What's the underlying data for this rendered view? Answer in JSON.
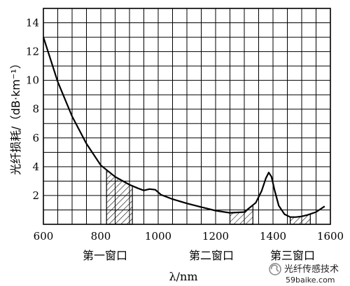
{
  "chart_data": {
    "type": "line",
    "title": "",
    "xlabel": "λ/nm",
    "ylabel": "光纤损耗/（dB·km⁻¹）",
    "xlim": [
      600,
      1600
    ],
    "ylim": [
      0,
      15
    ],
    "grid": true,
    "x_ticks": [
      "600",
      "800",
      "1000",
      "1200",
      "1400",
      "1600"
    ],
    "y_ticks": [
      "2",
      "4",
      "6",
      "8",
      "10",
      "12",
      "14"
    ],
    "series": [
      {
        "x": [
          600,
          650,
          700,
          750,
          800,
          850,
          900,
          930,
          950,
          970,
          990,
          1010,
          1050,
          1100,
          1150,
          1200,
          1250,
          1300,
          1340,
          1360,
          1375,
          1385,
          1395,
          1405,
          1420,
          1440,
          1460,
          1480,
          1500,
          1520,
          1550,
          1580
        ],
        "y": [
          13.0,
          9.9,
          7.5,
          5.6,
          4.1,
          3.3,
          2.75,
          2.5,
          2.35,
          2.45,
          2.4,
          2.05,
          1.75,
          1.45,
          1.2,
          0.95,
          0.8,
          0.85,
          1.5,
          2.3,
          3.2,
          3.6,
          3.3,
          2.4,
          1.3,
          0.7,
          0.5,
          0.5,
          0.55,
          0.65,
          0.85,
          1.25
        ]
      }
    ],
    "windows": [
      {
        "label": "第一窗口",
        "x": [
          820,
          910
        ]
      },
      {
        "label": "第二窗口",
        "x": [
          1250,
          1330
        ]
      },
      {
        "label": "第三窗口",
        "x": [
          1460,
          1530
        ]
      }
    ]
  },
  "watermark": {
    "line1": "光纤传感技术",
    "line2": "59baike.com"
  }
}
